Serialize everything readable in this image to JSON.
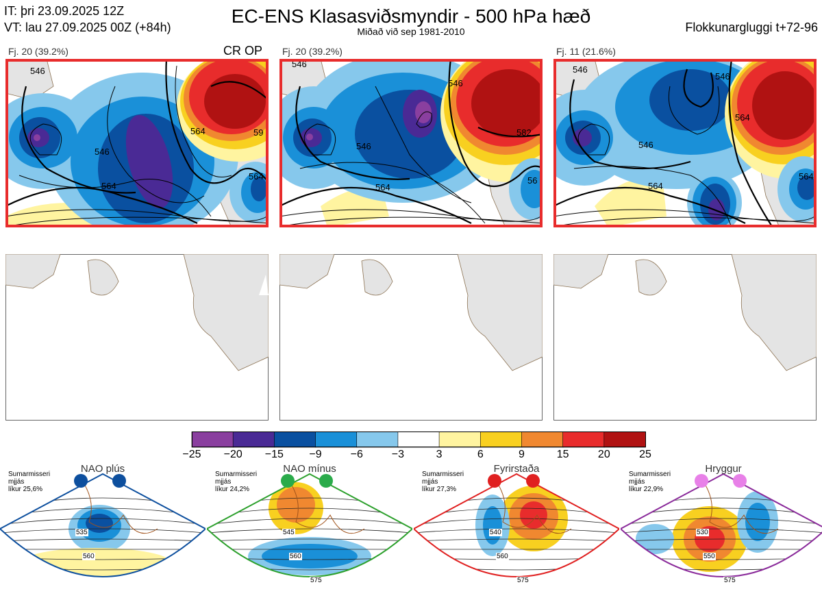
{
  "header": {
    "it_line": "IT: þri 23.09.2025 12Z",
    "vt_line": "VT: lau 27.09.2025 00Z  (+84h)",
    "title": "EC-ENS Klasasviðsmyndir - 500 hPa hæð",
    "subtitle": "Miðað við sep 1981-2010",
    "window": "Flokkunargluggi t+72-96"
  },
  "panels": [
    {
      "label": "Fj. 20 (39.2%)",
      "badge": "CR OP",
      "contours": [
        "546",
        "546",
        "564",
        "564",
        "564",
        "59"
      ]
    },
    {
      "label": "Fj. 20 (39.2%)",
      "badge": "",
      "contours": [
        "546",
        "546",
        "546",
        "564",
        "582",
        "56"
      ]
    },
    {
      "label": "Fj. 11 (21.6%)",
      "badge": "",
      "contours": [
        "546",
        "546",
        "546",
        "564",
        "564",
        "564"
      ]
    }
  ],
  "colorbar": {
    "ticks": [
      "−25",
      "−20",
      "−15",
      "−9",
      "−6",
      "−3",
      "3",
      "6",
      "9",
      "15",
      "20",
      "25"
    ],
    "colors": [
      "#8a3f9f",
      "#4a2a95",
      "#0a50a0",
      "#1a90d8",
      "#86c8ec",
      "#ffffff",
      "#fff4a0",
      "#f8d020",
      "#f08830",
      "#e82c2c",
      "#b01212"
    ]
  },
  "regimes": [
    {
      "name": "NAO plús",
      "note1": "Sumarmisseri",
      "note2": "mjjás",
      "note3": "líkur 25,6%",
      "color": "#0d4f9e",
      "dot": "#0d4f9e",
      "labels": [
        "535",
        "560"
      ]
    },
    {
      "name": "NAO mínus",
      "note1": "Sumarmisseri",
      "note2": "mjjás",
      "note3": "líkur 24,2%",
      "color": "#2ca02c",
      "dot": "#2aab4a",
      "labels": [
        "545",
        "560",
        "575"
      ]
    },
    {
      "name": "Fyrirstaða",
      "note1": "Sumarmisseri",
      "note2": "mjjás",
      "note3": "líkur 27,3%",
      "color": "#e02020",
      "dot": "#e02020",
      "labels": [
        "540",
        "560",
        "575"
      ]
    },
    {
      "name": "Hryggur",
      "note1": "Sumarmisseri",
      "note2": "mjjás",
      "note3": "líkur 22,9%",
      "color": "#8a2a9a",
      "dot": "#e880e8",
      "labels": [
        "530",
        "550",
        "575"
      ]
    }
  ]
}
